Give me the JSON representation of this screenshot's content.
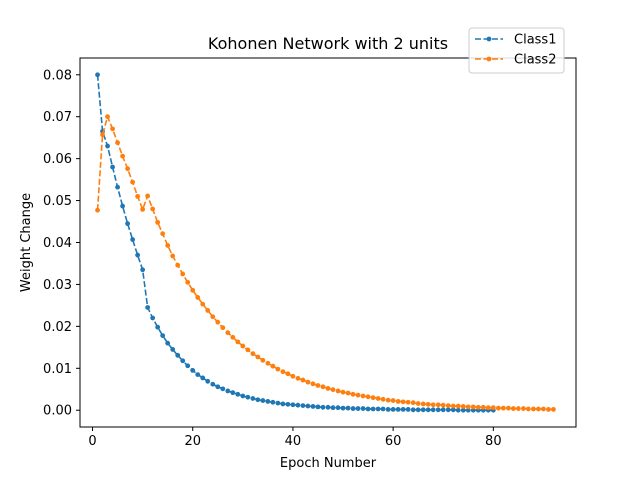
{
  "chart_data": {
    "type": "line",
    "title": "Kohonen Network with 2 units",
    "xlabel": "Epoch Number",
    "ylabel": "Weight Change",
    "xlim": [
      -2.5,
      96.5
    ],
    "ylim": [
      -0.004,
      0.084
    ],
    "xticks": [
      0,
      20,
      40,
      60,
      80
    ],
    "yticks": [
      0.0,
      0.01,
      0.02,
      0.03,
      0.04,
      0.05,
      0.06,
      0.07,
      0.08
    ],
    "ytick_labels": [
      "0.00",
      "0.01",
      "0.02",
      "0.03",
      "0.04",
      "0.05",
      "0.06",
      "0.07",
      "0.08"
    ],
    "grid": false,
    "legend": "top-right",
    "series": [
      {
        "name": "Class1",
        "color": "#1f77b4",
        "style": "dashed",
        "marker": "dot",
        "x": [
          1,
          2,
          3,
          4,
          5,
          6,
          7,
          8,
          9,
          10,
          11,
          12,
          13,
          14,
          15,
          16,
          17,
          18,
          19,
          20,
          21,
          22,
          23,
          24,
          25,
          26,
          27,
          28,
          29,
          30,
          31,
          32,
          33,
          34,
          35,
          36,
          37,
          38,
          39,
          40,
          41,
          42,
          43,
          44,
          45,
          46,
          47,
          48,
          49,
          50,
          51,
          52,
          53,
          54,
          55,
          56,
          57,
          58,
          59,
          60,
          61,
          62,
          63,
          64,
          65,
          66,
          67,
          68,
          69,
          70,
          71,
          72,
          73,
          74,
          75,
          76,
          77,
          78,
          79,
          80
        ],
        "y": [
          0.08,
          0.0665,
          0.063,
          0.058,
          0.0532,
          0.0487,
          0.0445,
          0.0407,
          0.037,
          0.0335,
          0.0245,
          0.022,
          0.0198,
          0.0178,
          0.016,
          0.0145,
          0.0131,
          0.0118,
          0.0106,
          0.0095,
          0.0085,
          0.0077,
          0.0069,
          0.0062,
          0.0056,
          0.0051,
          0.0046,
          0.0042,
          0.0038,
          0.0034,
          0.0031,
          0.0028,
          0.0025,
          0.0023,
          0.0021,
          0.0019,
          0.0017,
          0.0015,
          0.0014,
          0.0013,
          0.0012,
          0.0011,
          0.001,
          0.0009,
          0.0008,
          0.0007,
          0.0007,
          0.0006,
          0.0006,
          0.0005,
          0.0005,
          0.0004,
          0.0004,
          0.0004,
          0.0003,
          0.0003,
          0.0003,
          0.0003,
          0.0002,
          0.0002,
          0.0002,
          0.0002,
          0.0002,
          0.0001,
          0.0001,
          0.0001,
          0.0001,
          0.0001,
          0.0001,
          0.0001,
          0.0001,
          0.0001,
          0.0,
          0.0,
          0.0,
          0.0,
          0.0,
          0.0,
          0.0,
          0.0
        ]
      },
      {
        "name": "Class2",
        "color": "#ff7f0e",
        "style": "dashed",
        "marker": "dot",
        "x": [
          1,
          2,
          3,
          4,
          5,
          6,
          7,
          8,
          9,
          10,
          11,
          12,
          13,
          14,
          15,
          16,
          17,
          18,
          19,
          20,
          21,
          22,
          23,
          24,
          25,
          26,
          27,
          28,
          29,
          30,
          31,
          32,
          33,
          34,
          35,
          36,
          37,
          38,
          39,
          40,
          41,
          42,
          43,
          44,
          45,
          46,
          47,
          48,
          49,
          50,
          51,
          52,
          53,
          54,
          55,
          56,
          57,
          58,
          59,
          60,
          61,
          62,
          63,
          64,
          65,
          66,
          67,
          68,
          69,
          70,
          71,
          72,
          73,
          74,
          75,
          76,
          77,
          78,
          79,
          80,
          81,
          82,
          83,
          84,
          85,
          86,
          87,
          88,
          89,
          90,
          91,
          92
        ],
        "y": [
          0.0477,
          0.0657,
          0.07,
          0.0671,
          0.0638,
          0.0606,
          0.0576,
          0.0544,
          0.051,
          0.0479,
          0.0511,
          0.048,
          0.0448,
          0.0421,
          0.0393,
          0.0368,
          0.0346,
          0.0325,
          0.0305,
          0.0286,
          0.0269,
          0.0253,
          0.0238,
          0.0223,
          0.021,
          0.0197,
          0.0185,
          0.0174,
          0.0163,
          0.0153,
          0.0144,
          0.0135,
          0.0127,
          0.0119,
          0.0112,
          0.0105,
          0.0098,
          0.0092,
          0.0087,
          0.0081,
          0.0076,
          0.0072,
          0.0067,
          0.0063,
          0.0059,
          0.0056,
          0.0052,
          0.0049,
          0.0046,
          0.0043,
          0.0041,
          0.0038,
          0.0036,
          0.0034,
          0.0032,
          0.003,
          0.0028,
          0.0026,
          0.0024,
          0.0023,
          0.0021,
          0.002,
          0.0019,
          0.0018,
          0.0016,
          0.0015,
          0.0014,
          0.0013,
          0.0013,
          0.0012,
          0.0011,
          0.001,
          0.001,
          0.0009,
          0.0008,
          0.0008,
          0.0007,
          0.0007,
          0.0006,
          0.0006,
          0.0005,
          0.0005,
          0.0005,
          0.0004,
          0.0004,
          0.0004,
          0.0003,
          0.0003,
          0.0003,
          0.0003,
          0.0002,
          0.0002
        ]
      }
    ]
  }
}
